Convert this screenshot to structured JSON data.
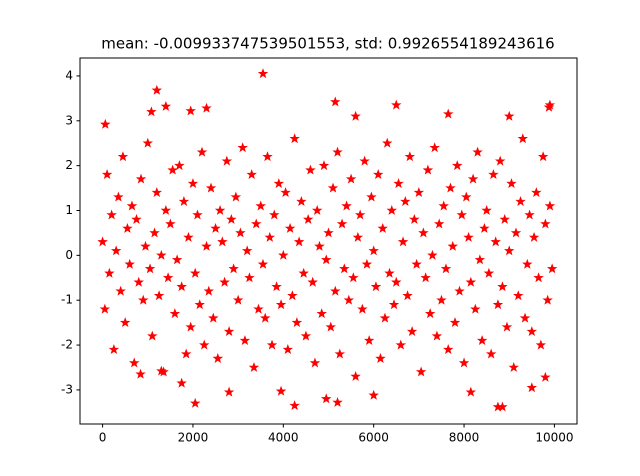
{
  "chart_data": {
    "type": "scatter",
    "title": "mean: -0.009933747539501553, std: 0.9926554189243616",
    "xlim": [
      -500,
      10500
    ],
    "ylim": [
      -3.76,
      4.4
    ],
    "xticks": [
      0,
      2000,
      4000,
      6000,
      8000,
      10000
    ],
    "yticks": [
      -3,
      -2,
      -1,
      0,
      1,
      2,
      3,
      4
    ],
    "grid": false,
    "marker": "star",
    "series": [
      {
        "color": "#ff0000",
        "x": [
          0,
          50,
          100,
          150,
          200,
          250,
          300,
          350,
          400,
          450,
          500,
          550,
          600,
          650,
          700,
          750,
          800,
          850,
          900,
          950,
          1000,
          1050,
          1100,
          1150,
          1200,
          1250,
          1300,
          1350,
          1400,
          1450,
          1500,
          1550,
          1600,
          1650,
          1700,
          1750,
          1800,
          1850,
          1900,
          1950,
          2000,
          2050,
          2100,
          2150,
          2200,
          2250,
          2300,
          2350,
          2400,
          2450,
          2500,
          2550,
          2600,
          2650,
          2700,
          2750,
          2800,
          2850,
          2900,
          2950,
          3000,
          3050,
          3100,
          3150,
          3200,
          3250,
          3300,
          3350,
          3400,
          3450,
          3500,
          3550,
          3600,
          3650,
          3700,
          3750,
          3800,
          3850,
          3900,
          3950,
          4000,
          4050,
          4100,
          4150,
          4200,
          4250,
          4300,
          4350,
          4400,
          4450,
          4500,
          4550,
          4600,
          4650,
          4700,
          4750,
          4800,
          4850,
          4900,
          4950,
          5000,
          5050,
          5100,
          5150,
          5200,
          5250,
          5300,
          5350,
          5400,
          5450,
          5500,
          5550,
          5600,
          5650,
          5700,
          5750,
          5800,
          5850,
          5900,
          5950,
          6000,
          6050,
          6100,
          6150,
          6200,
          6250,
          6300,
          6350,
          6400,
          6450,
          6500,
          6550,
          6600,
          6650,
          6700,
          6750,
          6800,
          6850,
          6900,
          6950,
          7000,
          7050,
          7100,
          7150,
          7200,
          7250,
          7300,
          7350,
          7400,
          7450,
          7500,
          7550,
          7600,
          7650,
          7700,
          7750,
          7800,
          7850,
          7900,
          7950,
          8000,
          8050,
          8100,
          8150,
          8200,
          8250,
          8300,
          8350,
          8400,
          8450,
          8500,
          8550,
          8600,
          8650,
          8700,
          8750,
          8800,
          8850,
          8900,
          8950,
          9000,
          9050,
          9100,
          9150,
          9200,
          9250,
          9300,
          9350,
          9400,
          9450,
          9500,
          9550,
          9600,
          9650,
          9700,
          9750,
          9800,
          9850,
          9900,
          9950,
          3550,
          1200,
          1400,
          2300,
          1950,
          5150,
          6500,
          9900,
          9880,
          9000,
          7650,
          5600,
          60,
          1080,
          2050,
          4250,
          4950,
          5200,
          8750,
          8850,
          6000,
          2800,
          3950,
          8150,
          9500,
          9800,
          1750,
          840,
          1300
        ],
        "values": [
          0.3,
          -1.2,
          1.8,
          -0.4,
          0.9,
          -2.1,
          0.1,
          1.3,
          -0.8,
          2.2,
          -1.5,
          0.6,
          -0.2,
          1.1,
          -2.4,
          0.8,
          -0.6,
          1.7,
          -1.0,
          0.2,
          2.5,
          -0.3,
          -1.8,
          0.5,
          1.4,
          -0.9,
          0.0,
          -2.6,
          1.0,
          -0.5,
          0.7,
          1.9,
          -1.3,
          -0.1,
          2.0,
          -0.7,
          1.2,
          -2.2,
          0.4,
          -1.6,
          1.6,
          -0.4,
          0.9,
          -1.1,
          2.3,
          -2.0,
          0.2,
          -0.8,
          1.5,
          -1.4,
          0.6,
          -2.3,
          1.0,
          0.3,
          -0.6,
          2.1,
          -1.7,
          0.8,
          -0.3,
          1.3,
          -1.0,
          0.5,
          2.4,
          -1.9,
          0.1,
          -0.5,
          1.8,
          -2.5,
          0.7,
          -1.2,
          1.1,
          -0.2,
          -1.4,
          2.2,
          0.4,
          -2.0,
          0.9,
          -0.7,
          1.6,
          -1.1,
          0.0,
          1.4,
          -2.1,
          0.6,
          -0.9,
          2.6,
          -1.5,
          0.3,
          1.2,
          -0.4,
          -1.8,
          0.8,
          1.9,
          -0.6,
          -2.4,
          1.0,
          0.2,
          -1.3,
          2.0,
          -0.1,
          0.5,
          -1.6,
          1.5,
          -0.8,
          2.3,
          -2.2,
          0.7,
          -0.3,
          1.1,
          -1.0,
          1.7,
          -0.5,
          -2.7,
          0.4,
          0.9,
          -1.2,
          2.1,
          -0.2,
          -1.9,
          1.3,
          0.1,
          -0.7,
          1.8,
          -2.3,
          0.6,
          -1.4,
          2.5,
          -0.4,
          1.0,
          -1.1,
          -0.6,
          1.6,
          -2.0,
          0.3,
          1.2,
          -0.9,
          2.2,
          -1.7,
          0.8,
          -0.2,
          1.4,
          -2.6,
          0.5,
          -0.5,
          1.9,
          -1.3,
          0.0,
          2.4,
          -1.8,
          0.7,
          -1.0,
          1.1,
          -0.3,
          -2.1,
          1.5,
          0.2,
          -1.5,
          2.0,
          -0.8,
          0.9,
          -2.4,
          1.3,
          0.4,
          -0.6,
          1.7,
          -1.2,
          2.3,
          -0.1,
          -1.9,
          0.6,
          1.0,
          -0.4,
          -2.2,
          1.8,
          0.3,
          -1.1,
          2.1,
          -0.7,
          0.8,
          -1.6,
          0.1,
          1.6,
          -2.5,
          0.5,
          -0.9,
          1.2,
          2.6,
          -1.4,
          -0.2,
          0.9,
          -1.7,
          0.4,
          1.4,
          -0.5,
          -2.0,
          2.2,
          0.7,
          -1.0,
          1.1,
          -0.3,
          4.05,
          3.68,
          3.32,
          3.28,
          3.22,
          3.42,
          3.35,
          3.35,
          3.3,
          3.1,
          3.15,
          3.1,
          2.92,
          3.2,
          -3.3,
          -3.35,
          -3.2,
          -3.28,
          -3.38,
          -3.38,
          -3.12,
          -3.05,
          -3.03,
          -3.05,
          -2.95,
          -2.72,
          -2.85,
          -2.65,
          -2.58
        ]
      }
    ]
  }
}
